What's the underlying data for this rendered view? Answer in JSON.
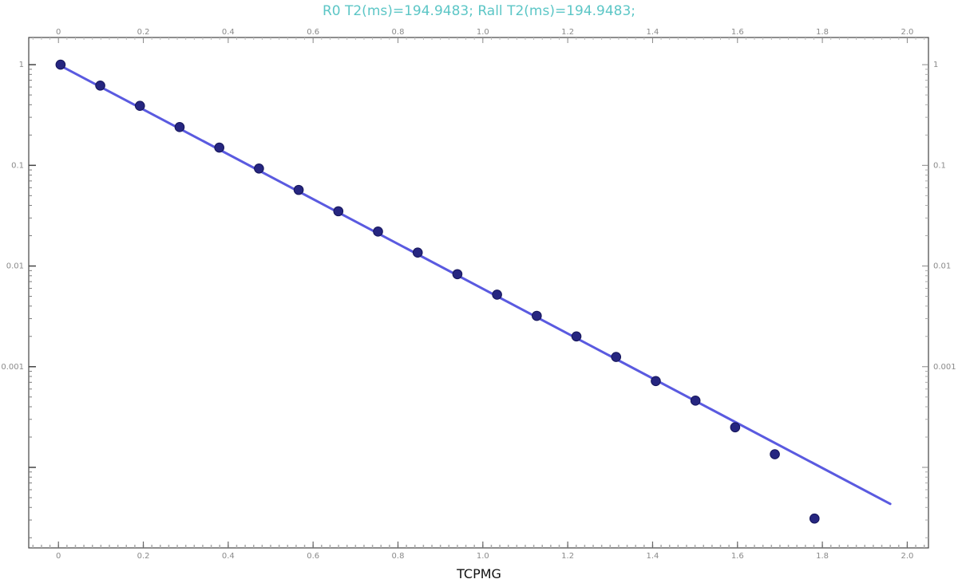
{
  "chart_data": {
    "type": "scatter",
    "title": "R0 T2(ms)=194.9483; Rall T2(ms)=194.9483;",
    "xlabel": "TCPMG",
    "ylabel": "",
    "xlim": [
      -0.07,
      2.05
    ],
    "ylim_log10": [
      -4.8,
      0.27
    ],
    "y_scale": "log",
    "x_ticks": [
      "0",
      "0.2",
      "0.4",
      "0.6",
      "0.8",
      "1.0",
      "1.2",
      "1.4",
      "1.6",
      "1.8",
      "2.0"
    ],
    "y_ticks": [
      {
        "value": 1,
        "label": "1"
      },
      {
        "value": 0.1,
        "label": "0.1"
      },
      {
        "value": 0.01,
        "label": "0.01"
      },
      {
        "value": 0.001,
        "label": "0.001"
      },
      {
        "value": 0.0001,
        "label": ""
      }
    ],
    "grid": false,
    "legend": "none",
    "colors": {
      "points": "#262680",
      "fit_line": "#5a5ae0",
      "title": "#5cc6c6"
    },
    "fit_line": {
      "name": "",
      "x": [
        0.0,
        1.96
      ],
      "y": [
        1.0,
        4.34e-05
      ]
    },
    "series": [
      {
        "name": "",
        "x": [
          0.005,
          0.0985,
          0.192,
          0.2855,
          0.379,
          0.4725,
          0.566,
          0.6595,
          0.753,
          0.8465,
          0.94,
          1.0335,
          1.127,
          1.2205,
          1.314,
          1.4075,
          1.501,
          1.5945,
          1.688,
          1.7815
        ],
        "y": [
          1.0,
          0.62,
          0.39,
          0.24,
          0.15,
          0.093,
          0.057,
          0.035,
          0.022,
          0.0136,
          0.0083,
          0.0052,
          0.0032,
          0.002,
          0.00125,
          0.00072,
          0.00046,
          0.00025,
          0.000135,
          3.1e-05
        ]
      }
    ]
  }
}
